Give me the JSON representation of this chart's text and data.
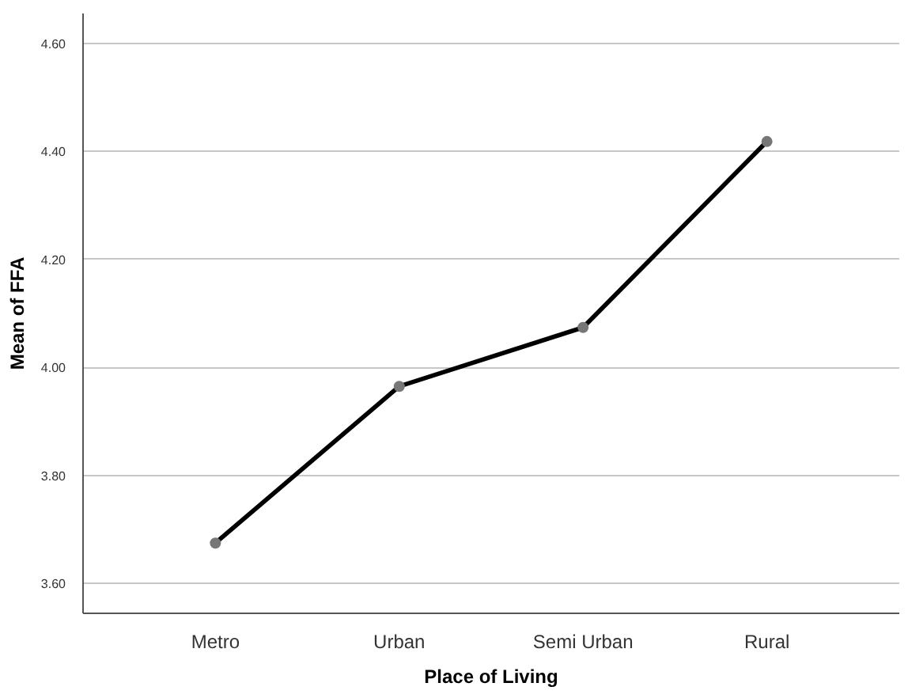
{
  "chart_data": {
    "type": "line",
    "xlabel": "Place of Living",
    "ylabel": "Mean of FFA",
    "categories": [
      "Metro",
      "Urban",
      "Semi Urban",
      "Rural"
    ],
    "series": [
      {
        "color": "#000000",
        "values": [
          3.675,
          3.965,
          4.074,
          4.418
        ]
      }
    ],
    "ylim": [
      3.545,
      4.655
    ],
    "yticks": [
      {
        "value": 3.6,
        "label": "3.60"
      },
      {
        "value": 3.8,
        "label": "3.80"
      },
      {
        "value": 4.0,
        "label": "4.00"
      },
      {
        "value": 4.2,
        "label": "4.20"
      },
      {
        "value": 4.4,
        "label": "4.40"
      },
      {
        "value": 4.6,
        "label": "4.60"
      }
    ],
    "grid": "y",
    "marker": "circle",
    "line_style": "solid"
  }
}
